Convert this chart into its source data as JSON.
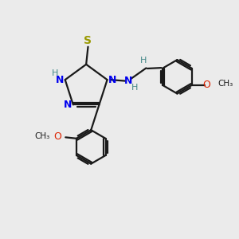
{
  "background_color": "#ebebeb",
  "bond_color": "#1a1a1a",
  "N_color": "#0000ee",
  "S_color": "#999900",
  "O_color": "#dd2200",
  "H_color": "#448888",
  "C_color": "#1a1a1a",
  "figsize": [
    3.0,
    3.0
  ],
  "dpi": 100,
  "xlim": [
    0,
    10
  ],
  "ylim": [
    0,
    10
  ]
}
